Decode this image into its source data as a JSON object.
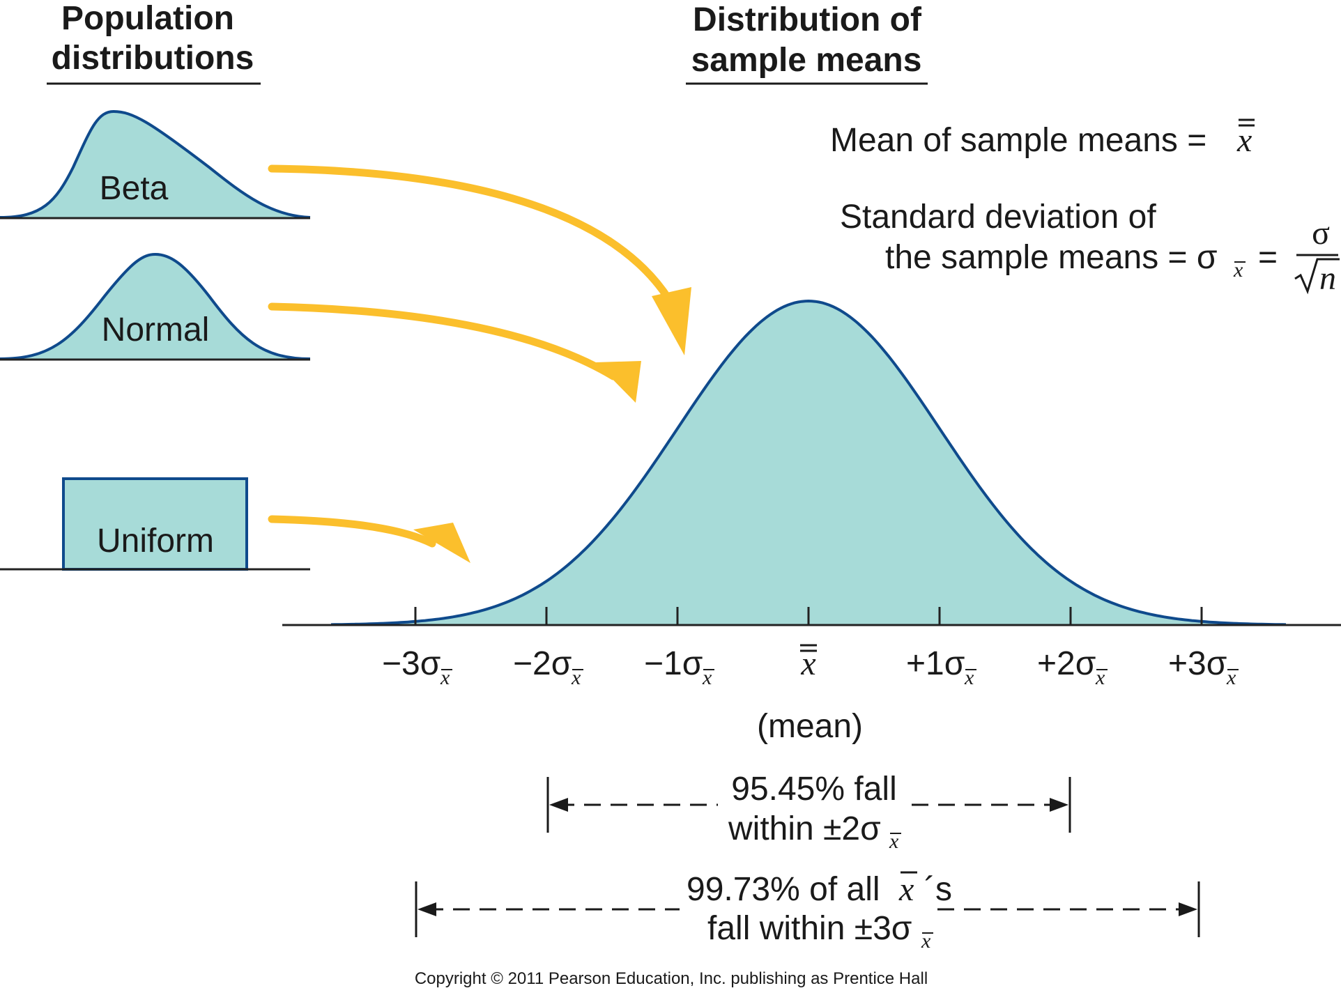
{
  "headers": {
    "population": [
      "Population",
      "distributions"
    ],
    "sample": [
      "Distribution of",
      "sample means"
    ]
  },
  "populations": [
    {
      "label": "Beta"
    },
    {
      "label": "Normal"
    },
    {
      "label": "Uniform"
    }
  ],
  "formulas": {
    "mean_text": "Mean of sample means = ",
    "mean_symbol": "x",
    "sd_line1": "Standard deviation of",
    "sd_line2": "the sample means = σ",
    "sd_sub": "x",
    "sd_equals": "=",
    "numerator": "σ",
    "denominator": "n"
  },
  "axis": {
    "ticks": [
      {
        "prefix": "−3σ",
        "sub": "x"
      },
      {
        "prefix": "−2σ",
        "sub": "x"
      },
      {
        "prefix": "−1σ",
        "sub": "x"
      },
      {
        "prefix": "",
        "sub": "",
        "center": "x"
      },
      {
        "prefix": "+1σ",
        "sub": "x"
      },
      {
        "prefix": "+2σ",
        "sub": "x"
      },
      {
        "prefix": "+3σ",
        "sub": "x"
      }
    ],
    "mean_label": "(mean)"
  },
  "ranges": {
    "two_sigma": {
      "line1": "95.45% fall",
      "line2_prefix": "within ±2σ",
      "line2_sub": "x"
    },
    "three_sigma": {
      "line1_prefix": "99.73% of all ",
      "line1_sym": "x",
      "line1_suffix": "´s",
      "line2_prefix": "fall within ±3σ",
      "line2_sub": "x"
    }
  },
  "copyright": "Copyright © 2011 Pearson Education, Inc. publishing as Prentice Hall",
  "colors": {
    "fill": "#a7dbd8",
    "curve": "#0f4a8c",
    "arrow": "#fbbf2c"
  }
}
